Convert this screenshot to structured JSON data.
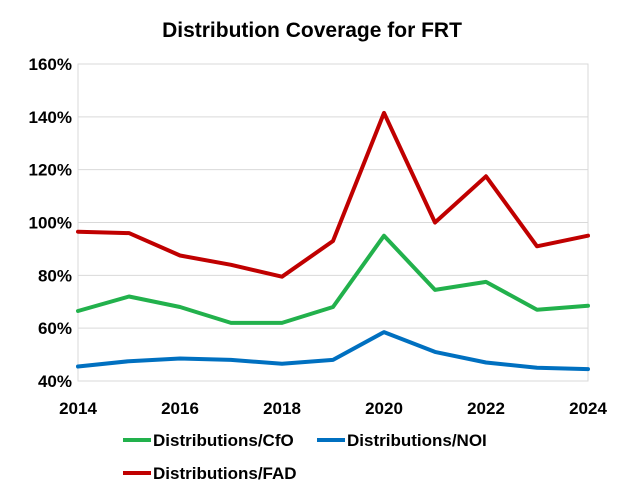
{
  "chart_data": {
    "type": "line",
    "title": "Distribution Coverage for FRT",
    "x": [
      2014,
      2015,
      2016,
      2017,
      2018,
      2019,
      2020,
      2021,
      2022,
      2023,
      2024
    ],
    "x_tick_labels": [
      "2014",
      "2016",
      "2018",
      "2020",
      "2022",
      "2024"
    ],
    "y_tick_labels": [
      "40%",
      "60%",
      "80%",
      "100%",
      "120%",
      "140%",
      "160%"
    ],
    "xlim": [
      2014,
      2024
    ],
    "ylim": [
      40,
      160
    ],
    "yticks": [
      40,
      60,
      80,
      100,
      120,
      140,
      160
    ],
    "xticks": [
      2014,
      2016,
      2018,
      2020,
      2022,
      2024
    ],
    "grid": true,
    "legend_position": "bottom",
    "series": [
      {
        "name": "Distributions/CfO",
        "color": "#22b14c",
        "values": [
          66.5,
          72,
          68,
          62,
          62,
          68,
          95,
          74.5,
          77.5,
          67,
          68.5
        ]
      },
      {
        "name": "Distributions/NOI",
        "color": "#0070c0",
        "values": [
          45.5,
          47.5,
          48.5,
          48,
          46.5,
          48,
          58.5,
          51,
          47,
          45,
          44.5
        ]
      },
      {
        "name": "Distributions/FAD",
        "color": "#c00000",
        "values": [
          96.5,
          96,
          87.5,
          84,
          79.5,
          93,
          141.5,
          100,
          117.5,
          91,
          95
        ]
      }
    ]
  }
}
